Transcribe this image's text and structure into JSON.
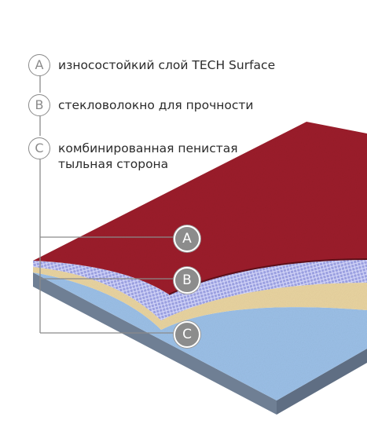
{
  "legend": [
    {
      "letter": "A",
      "text": "износостойкий слой TECH Surface"
    },
    {
      "letter": "B",
      "text": "стекловолокно для прочности"
    },
    {
      "letter": "C",
      "text": "комбинированная пенистая",
      "text2": "тыльная сторона"
    }
  ],
  "callouts": [
    "A",
    "B",
    "C"
  ],
  "colors": {
    "wear_layer": "#9b1b2a",
    "fiberglass": "#9a9fe0",
    "foam": "#e8d3a0",
    "backing": "#9bbfe6",
    "callout_badge": "#8c8c8c",
    "leader_line": "#8a8a8a"
  }
}
